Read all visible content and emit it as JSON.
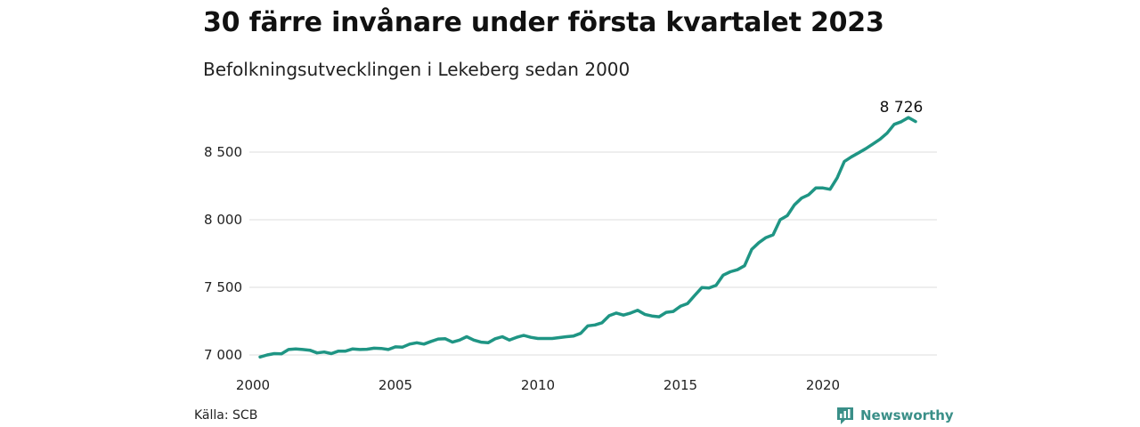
{
  "header": {
    "title": "30 färre invånare under första kvartalet 2023",
    "subtitle": "Befolkningsutvecklingen i Lekeberg sedan 2000"
  },
  "footer": {
    "source": "Källa: SCB",
    "brand": "Newsworthy"
  },
  "colors": {
    "line": "#1f9584",
    "grid": "#dddddd",
    "brand": "#3a8f88"
  },
  "chart_data": {
    "type": "line",
    "title": "30 färre invånare under första kvartalet 2023",
    "subtitle": "Befolkningsutvecklingen i Lekeberg sedan 2000",
    "xlabel": "",
    "ylabel": "",
    "xlim": [
      2000,
      2023.25
    ],
    "ylim": [
      6990,
      8800
    ],
    "x_ticks": [
      2000,
      2005,
      2010,
      2015,
      2020
    ],
    "x_tick_labels": [
      "2000",
      "2005",
      "2010",
      "2015",
      "2020"
    ],
    "y_ticks": [
      7000,
      7500,
      8000,
      8500
    ],
    "y_tick_labels": [
      "7 000",
      "7 500",
      "8 000",
      "8 500"
    ],
    "grid": "horizontal",
    "end_label": "8 726",
    "series": [
      {
        "x": [
          2000.25,
          2000.5,
          2000.75,
          2001.0,
          2001.25,
          2001.5,
          2001.75,
          2002.0,
          2002.25,
          2002.5,
          2002.75,
          2003.0,
          2003.25,
          2003.5,
          2003.75,
          2004.0,
          2004.25,
          2004.5,
          2004.75,
          2005.0,
          2005.25,
          2005.5,
          2005.75,
          2006.0,
          2006.25,
          2006.5,
          2006.75,
          2007.0,
          2007.25,
          2007.5,
          2007.75,
          2008.0,
          2008.25,
          2008.5,
          2008.75,
          2009.0,
          2009.25,
          2009.5,
          2009.75,
          2010.0,
          2010.25,
          2010.5,
          2010.75,
          2011.0,
          2011.25,
          2011.5,
          2011.75,
          2012.0,
          2012.25,
          2012.5,
          2012.75,
          2013.0,
          2013.25,
          2013.5,
          2013.75,
          2014.0,
          2014.25,
          2014.5,
          2014.75,
          2015.0,
          2015.25,
          2015.5,
          2015.75,
          2016.0,
          2016.25,
          2016.5,
          2016.75,
          2017.0,
          2017.25,
          2017.5,
          2017.75,
          2018.0,
          2018.25,
          2018.5,
          2018.75,
          2019.0,
          2019.25,
          2019.5,
          2019.75,
          2020.0,
          2020.25,
          2020.5,
          2020.75,
          2021.0,
          2021.25,
          2021.5,
          2021.75,
          2022.0,
          2022.25,
          2022.5,
          2022.75,
          2023.0,
          2023.25
        ],
        "values": [
          6985,
          7000,
          7010,
          7008,
          7040,
          7045,
          7040,
          7035,
          7015,
          7022,
          7010,
          7028,
          7028,
          7045,
          7040,
          7042,
          7050,
          7048,
          7040,
          7060,
          7058,
          7080,
          7090,
          7080,
          7100,
          7118,
          7120,
          7095,
          7110,
          7135,
          7110,
          7095,
          7090,
          7120,
          7135,
          7110,
          7130,
          7145,
          7130,
          7122,
          7122,
          7122,
          7128,
          7135,
          7140,
          7160,
          7215,
          7222,
          7238,
          7290,
          7310,
          7295,
          7310,
          7330,
          7300,
          7288,
          7282,
          7315,
          7322,
          7360,
          7380,
          7440,
          7498,
          7495,
          7515,
          7590,
          7615,
          7630,
          7660,
          7780,
          7830,
          7868,
          7888,
          8000,
          8030,
          8110,
          8160,
          8185,
          8235,
          8235,
          8225,
          8310,
          8430,
          8465,
          8495,
          8525,
          8560,
          8595,
          8640,
          8705,
          8725,
          8756,
          8726
        ]
      }
    ]
  }
}
